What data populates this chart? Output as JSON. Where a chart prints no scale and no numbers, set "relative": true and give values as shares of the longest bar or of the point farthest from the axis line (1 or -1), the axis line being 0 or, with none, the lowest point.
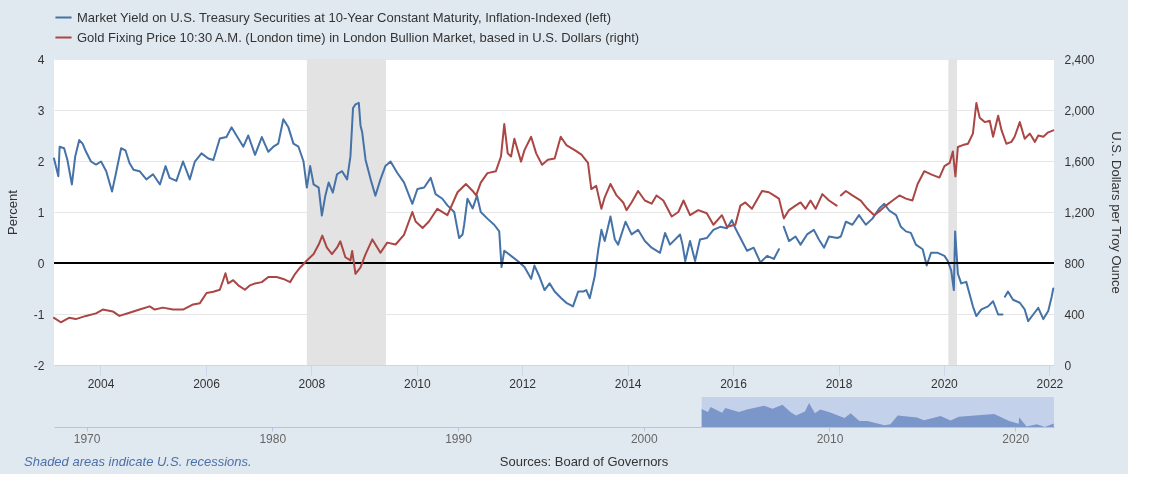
{
  "chart_data": [
    {
      "type": "line",
      "legend": "top left",
      "ylabel": "Percent",
      "y2label": "U.S. Dollars per Troy Ounce",
      "grid": "y",
      "xlim": [
        "2003-02-13",
        "2022-02-02"
      ],
      "xticks": [
        "2004",
        "2006",
        "2008",
        "2010",
        "2012",
        "2014",
        "2016",
        "2018",
        "2020",
        "2022"
      ],
      "ylim": [
        -2,
        4
      ],
      "yticks": [
        -2,
        -1,
        0,
        1,
        2,
        3,
        4
      ],
      "y2lim": [
        0,
        2400
      ],
      "y2ticks": [
        0,
        400,
        800,
        {
          "value": 1200,
          "label": "1,200"
        },
        {
          "value": 1600,
          "label": "1,600"
        },
        {
          "value": 2000,
          "label": "2,000"
        },
        {
          "value": 2400,
          "label": "2,400"
        }
      ],
      "series": [
        {
          "name": "Market Yield on U.S. Treasury Securities at 10-Year Constant Maturity, Inflation-Indexed (left)",
          "color": "#4572a7",
          "x": [
            "2003-02-13",
            "2003-03-15",
            "2003-03-24",
            "2003-04-24",
            "2003-05-17",
            "2003-06-17",
            "2003-07-10",
            "2003-08-07",
            "2003-08-30",
            "2003-09-23",
            "2003-10-27",
            "2003-12-01",
            "2004-01-05",
            "2004-02-10",
            "2004-03-21",
            "2004-04-18",
            "2004-05-23",
            "2004-06-22",
            "2004-07-20",
            "2004-08-17",
            "2004-09-28",
            "2004-11-14",
            "2004-12-30",
            "2005-02-16",
            "2005-03-27",
            "2005-04-24",
            "2005-06-10",
            "2005-07-26",
            "2005-09-11",
            "2005-10-16",
            "2005-12-01",
            "2006-01-17",
            "2006-02-21",
            "2006-04-07",
            "2006-05-23",
            "2006-06-27",
            "2006-08-13",
            "2006-09-17",
            "2006-10-21",
            "2006-12-07",
            "2007-01-23",
            "2007-03-09",
            "2007-04-13",
            "2007-05-17",
            "2007-06-21",
            "2007-07-26",
            "2007-08-30",
            "2007-10-04",
            "2007-11-08",
            "2007-12-01",
            "2007-12-24",
            "2008-01-17",
            "2008-02-21",
            "2008-03-14",
            "2008-04-07",
            "2008-04-30",
            "2008-05-29",
            "2008-06-27",
            "2008-08-01",
            "2008-09-05",
            "2008-09-28",
            "2008-10-16",
            "2008-11-02",
            "2008-11-25",
            "2008-12-07",
            "2008-12-18",
            "2009-01-11",
            "2009-02-15",
            "2009-03-20",
            "2009-04-24",
            "2009-05-28",
            "2009-07-03",
            "2009-08-18",
            "2009-10-04",
            "2009-12-01",
            "2010-01-05",
            "2010-02-21",
            "2010-04-07",
            "2010-05-11",
            "2010-06-27",
            "2010-08-01",
            "2010-09-17",
            "2010-10-21",
            "2010-11-14",
            "2010-11-25",
            "2010-12-18",
            "2011-01-23",
            "2011-02-22",
            "2011-03-20",
            "2011-05-05",
            "2011-06-21",
            "2011-07-26",
            "2011-08-11",
            "2011-08-30",
            "2011-10-16",
            "2011-12-01",
            "2012-01-17",
            "2012-03-03",
            "2012-03-26",
            "2012-04-30",
            "2012-06-04",
            "2012-07-09",
            "2012-08-13",
            "2012-09-28",
            "2012-11-02",
            "2012-12-18",
            "2013-01-23",
            "2013-02-27",
            "2013-03-20",
            "2013-04-13",
            "2013-05-17",
            "2013-06-10",
            "2013-07-03",
            "2013-07-26",
            "2013-09-04",
            "2013-10-04",
            "2013-10-27",
            "2013-12-17",
            "2014-01-28",
            "2014-03-14",
            "2014-04-30",
            "2014-06-16",
            "2014-08-13",
            "2014-09-17",
            "2014-10-21",
            "2014-12-30",
            "2015-01-16",
            "2015-02-04",
            "2015-03-09",
            "2015-04-13",
            "2015-05-17",
            "2015-07-03",
            "2015-08-18",
            "2015-10-04",
            "2015-11-20",
            "2015-12-24",
            "2016-01-17",
            "2016-02-21",
            "2016-04-07",
            "2016-05-23",
            "2016-07-09",
            "2016-08-24",
            "2016-10-10",
            "2016-11-14",
            "2016-12-02",
            "2016-12-18",
            "2017-01-23",
            "2017-03-09",
            "2017-04-13",
            "2017-05-28",
            "2017-07-14",
            "2017-08-18",
            "2017-09-23",
            "2017-10-27",
            "2017-12-24",
            "2018-01-17",
            "2018-02-21",
            "2018-04-07",
            "2018-05-23",
            "2018-07-09",
            "2018-08-24",
            "2018-10-10",
            "2018-11-14",
            "2018-12-18",
            "2019-02-04",
            "2019-03-09",
            "2019-04-13",
            "2019-05-17",
            "2019-06-21",
            "2019-08-07",
            "2019-09-04",
            "2019-10-04",
            "2019-11-20",
            "2020-01-05",
            "2020-01-28",
            "2020-02-21",
            "2020-03-10",
            "2020-03-19",
            "2020-04-07",
            "2020-04-30",
            "2020-06-04",
            "2020-07-20",
            "2020-08-13",
            "2020-09-17",
            "2020-11-02",
            "2020-12-07",
            "2021-01-11",
            "2021-02-10",
            "2021-02-17",
            "2021-02-27",
            "2021-03-20",
            "2021-04-24",
            "2021-06-10",
            "2021-07-14",
            "2021-08-07",
            "2021-09-11",
            "2021-10-16",
            "2021-11-20",
            "2021-12-24",
            "2022-01-17",
            "2022-01-28"
          ],
          "values": [
            2.05,
            1.7,
            2.28,
            2.25,
            2.02,
            1.54,
            2.09,
            2.41,
            2.34,
            2.18,
            1.99,
            1.93,
            1.99,
            1.8,
            1.4,
            1.77,
            2.25,
            2.21,
            1.96,
            1.83,
            1.8,
            1.64,
            1.74,
            1.54,
            1.9,
            1.67,
            1.61,
            1.99,
            1.64,
            1.99,
            2.15,
            2.05,
            2.02,
            2.44,
            2.47,
            2.66,
            2.44,
            2.28,
            2.5,
            2.12,
            2.47,
            2.18,
            2.28,
            2.34,
            2.82,
            2.66,
            2.34,
            2.28,
            1.99,
            1.48,
            1.9,
            1.54,
            1.48,
            0.93,
            1.32,
            1.58,
            1.38,
            1.74,
            1.8,
            1.64,
            2.09,
            3.04,
            3.11,
            3.14,
            2.69,
            2.57,
            2.02,
            1.64,
            1.32,
            1.64,
            1.9,
            1.99,
            1.77,
            1.58,
            1.16,
            1.45,
            1.48,
            1.67,
            1.35,
            1.26,
            1.13,
            1.0,
            0.49,
            0.56,
            0.75,
            1.26,
            1.07,
            1.32,
            1.0,
            0.87,
            0.75,
            0.62,
            -0.08,
            0.24,
            0.14,
            0.04,
            -0.08,
            -0.31,
            -0.05,
            -0.27,
            -0.53,
            -0.4,
            -0.56,
            -0.69,
            -0.78,
            -0.85,
            -0.56,
            -0.56,
            -0.53,
            -0.69,
            -0.27,
            0.24,
            0.65,
            0.43,
            0.91,
            0.46,
            0.36,
            0.81,
            0.56,
            0.65,
            0.43,
            0.3,
            0.2,
            0.59,
            0.36,
            0.56,
            0.36,
            0.04,
            0.43,
            0.04,
            0.46,
            0.49,
            0.65,
            0.71,
            0.68,
            0.84,
            0.68,
            0.49,
            0.24,
            0.3,
            0.01,
            0.14,
            0.08,
            0.27,
            null,
            0.71,
            0.43,
            0.52,
            0.36,
            0.56,
            0.65,
            0.46,
            0.3,
            0.52,
            0.49,
            0.52,
            0.81,
            0.75,
            0.94,
            0.75,
            0.87,
            1.07,
            1.16,
            1.03,
            0.94,
            0.71,
            0.62,
            0.59,
            0.36,
            0.27,
            -0.05,
            0.2,
            0.2,
            0.14,
            0.04,
            -0.15,
            -0.53,
            0.62,
            -0.21,
            -0.4,
            -0.37,
            -0.85,
            -1.04,
            -0.91,
            -0.85,
            -0.75,
            -1.01,
            -1.01,
            null,
            -0.66,
            -0.56,
            -0.72,
            -0.78,
            -0.91,
            -1.14,
            -1.01,
            -0.88,
            -1.1,
            -0.94,
            -0.66,
            -0.5
          ]
        },
        {
          "name": "Gold Fixing Price 10:30 A.M. (London time) in London Bullion Market, based in U.S. Dollars (right)",
          "color": "#aa4643",
          "axis": "y2",
          "x": [
            "2003-02-13",
            "2003-04-01",
            "2003-05-28",
            "2003-07-14",
            "2003-09-23",
            "2003-12-01",
            "2004-01-17",
            "2004-03-26",
            "2004-05-11",
            "2004-07-20",
            "2004-09-28",
            "2004-12-07",
            "2005-01-11",
            "2005-03-09",
            "2005-05-17",
            "2005-07-26",
            "2005-10-04",
            "2005-11-20",
            "2006-01-05",
            "2006-02-21",
            "2006-04-07",
            "2006-04-30",
            "2006-05-16",
            "2006-06-04",
            "2006-07-09",
            "2006-08-13",
            "2006-09-28",
            "2006-11-02",
            "2006-12-07",
            "2007-01-23",
            "2007-03-09",
            "2007-05-05",
            "2007-06-21",
            "2007-08-07",
            "2007-09-11",
            "2007-10-16",
            "2007-12-01",
            "2008-01-17",
            "2008-02-21",
            "2008-03-17",
            "2008-04-18",
            "2008-05-23",
            "2008-06-27",
            "2008-07-20",
            "2008-08-24",
            "2008-09-28",
            "2008-10-10",
            "2008-11-02",
            "2008-12-07",
            "2009-01-11",
            "2009-02-27",
            "2009-03-20",
            "2009-04-24",
            "2009-06-10",
            "2009-08-07",
            "2009-10-04",
            "2009-12-01",
            "2009-12-24",
            "2010-02-10",
            "2010-03-26",
            "2010-05-23",
            "2010-08-01",
            "2010-10-10",
            "2010-12-07",
            "2011-01-23",
            "2011-02-16",
            "2011-03-20",
            "2011-05-05",
            "2011-07-03",
            "2011-08-07",
            "2011-08-30",
            "2011-09-23",
            "2011-10-16",
            "2011-11-08",
            "2011-12-24",
            "2012-01-17",
            "2012-03-03",
            "2012-04-07",
            "2012-05-18",
            "2012-06-27",
            "2012-08-13",
            "2012-09-24",
            "2012-11-02",
            "2012-12-30",
            "2013-02-15",
            "2013-04-01",
            "2013-04-24",
            "2013-05-28",
            "2013-07-03",
            "2013-07-26",
            "2013-09-04",
            "2013-10-16",
            "2013-12-01",
            "2013-12-24",
            "2014-01-28",
            "2014-03-14",
            "2014-04-30",
            "2014-06-16",
            "2014-07-20",
            "2014-09-05",
            "2014-11-02",
            "2014-12-18",
            "2015-01-23",
            "2015-03-09",
            "2015-05-05",
            "2015-07-03",
            "2015-08-18",
            "2015-10-16",
            "2015-11-20",
            "2016-01-17",
            "2016-02-21",
            "2016-03-26",
            "2016-05-11",
            "2016-07-20",
            "2016-09-05",
            "2016-10-10",
            "2016-11-14",
            "2016-12-18",
            "2017-01-23",
            "2017-03-09",
            "2017-04-13",
            "2017-05-17",
            "2017-06-21",
            "2017-07-26",
            "2017-09-11",
            "2017-10-27",
            "2017-12-19",
            "2018-01-01",
            "2018-01-17",
            "2018-02-21",
            "2018-04-07",
            "2018-06-04",
            "2018-07-20",
            "2018-09-05",
            "2018-10-21",
            "2018-11-25",
            "2019-01-11",
            "2019-02-27",
            "2019-04-13",
            "2019-05-28",
            "2019-07-03",
            "2019-08-18",
            "2019-10-04",
            "2019-12-01",
            "2020-01-05",
            "2020-02-10",
            "2020-03-03",
            "2020-03-21",
            "2020-04-07",
            "2020-05-11",
            "2020-06-16",
            "2020-07-20",
            "2020-08-13",
            "2020-09-05",
            "2020-10-10",
            "2020-11-14",
            "2020-12-07",
            "2021-01-11",
            "2021-02-04",
            "2021-03-09",
            "2021-04-13",
            "2021-05-05",
            "2021-06-10",
            "2021-07-14",
            "2021-08-18",
            "2021-09-23",
            "2021-10-16",
            "2021-11-20",
            "2021-12-24",
            "2022-01-28"
          ],
          "values": [
            370,
            335,
            370,
            360,
            385,
            405,
            435,
            420,
            385,
            410,
            435,
            460,
            435,
            450,
            435,
            435,
            475,
            485,
            565,
            575,
            590,
            665,
            720,
            640,
            665,
            625,
            590,
            625,
            640,
            650,
            690,
            690,
            675,
            650,
            715,
            765,
            820,
            870,
            945,
            1015,
            920,
            870,
            920,
            970,
            845,
            820,
            895,
            715,
            765,
            870,
            985,
            945,
            880,
            960,
            945,
            1020,
            1200,
            1125,
            1075,
            1125,
            1225,
            1175,
            1355,
            1420,
            1365,
            1330,
            1430,
            1505,
            1520,
            1635,
            1890,
            1660,
            1635,
            1775,
            1595,
            1685,
            1790,
            1660,
            1570,
            1610,
            1620,
            1790,
            1725,
            1685,
            1650,
            1585,
            1380,
            1405,
            1225,
            1315,
            1420,
            1330,
            1275,
            1215,
            1275,
            1365,
            1290,
            1265,
            1330,
            1290,
            1165,
            1200,
            1290,
            1175,
            1215,
            1190,
            1100,
            1175,
            1085,
            1100,
            1250,
            1275,
            1225,
            1365,
            1355,
            1330,
            1305,
            1150,
            1215,
            1250,
            1275,
            1225,
            1290,
            1225,
            1340,
            1290,
            1250,
            null,
            1330,
            1365,
            1330,
            1290,
            1225,
            1175,
            1215,
            1250,
            1290,
            1330,
            1305,
            1290,
            1420,
            1520,
            1495,
            1470,
            1560,
            1585,
            1675,
            1480,
            1710,
            1725,
            1735,
            1815,
            2055,
            1940,
            1905,
            1915,
            1790,
            1955,
            1840,
            1735,
            1750,
            1790,
            1905,
            1775,
            1815,
            1750,
            1800,
            1790,
            1825,
            1840
          ]
        }
      ],
      "ref_lines": [
        {
          "axis": "y",
          "value": 0,
          "color": "#000000"
        }
      ],
      "bands": [
        {
          "axis": "x",
          "from": "2007-12-01",
          "to": "2009-06-01",
          "color": "#e3e3e3"
        },
        {
          "axis": "x",
          "from": "2020-02-01",
          "to": "2020-04-01",
          "color": "#e3e3e3"
        }
      ],
      "annotations": [
        "Shaded areas indicate U.S. recessions.",
        "Sources: Board of Governors"
      ]
    },
    {
      "type": "area",
      "relative": true,
      "xlim": [
        "1968-04-01",
        "2022-02-02"
      ],
      "xticks": [
        "1970",
        "1980",
        "1990",
        "2000",
        "2010",
        "2020"
      ],
      "series": [
        {
          "color": "#7b97c9",
          "x": [
            "2003-02-13",
            "2003-06-17",
            "2003-08-07",
            "2004-03-21",
            "2004-05-23",
            "2005-02-16",
            "2005-07-26",
            "2006-06-27",
            "2006-12-07",
            "2007-06-21",
            "2007-12-01",
            "2008-03-14",
            "2008-09-05",
            "2008-11-25",
            "2009-03-20",
            "2009-07-03",
            "2010-01-05",
            "2010-10-21",
            "2011-02-22",
            "2011-08-11",
            "2012-01-17",
            "2012-12-18",
            "2013-04-13",
            "2013-09-04",
            "2014-09-17",
            "2015-02-04",
            "2015-12-24",
            "2016-07-09",
            "2016-12-18",
            "2018-11-14",
            "2019-09-04",
            "2020-03-10",
            "2020-03-19",
            "2020-08-13",
            "2021-02-27",
            "2021-08-07",
            "2022-01-28"
          ],
          "values": [
            0.75,
            0.63,
            0.83,
            0.59,
            0.79,
            0.63,
            0.73,
            0.89,
            0.76,
            0.93,
            0.61,
            0.48,
            0.65,
            1.0,
            0.57,
            0.73,
            0.61,
            0.38,
            0.57,
            0.25,
            0.25,
            0.07,
            0.11,
            0.48,
            0.4,
            0.28,
            0.46,
            0.27,
            0.43,
            0.54,
            0.25,
            0.14,
            0.41,
            0.02,
            0.11,
            0.0,
            0.15
          ]
        }
      ],
      "bands": [
        {
          "axis": "x",
          "from": "2003-02-13",
          "to": "2022-02-02",
          "color": "#c4d1ea"
        }
      ]
    }
  ]
}
